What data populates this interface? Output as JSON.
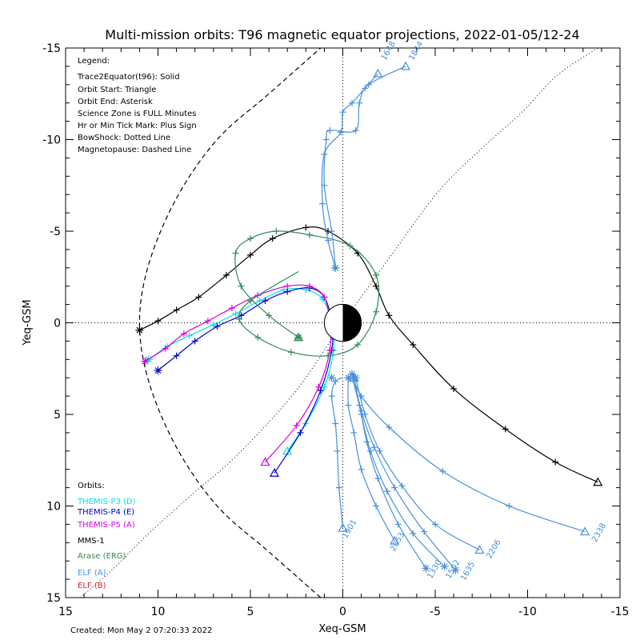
{
  "chart_data": {
    "type": "line",
    "title": "Multi-mission orbits: T96 magnetic equator projections, 2022-01-05/12-24",
    "xlabel": "Xeq-GSM",
    "ylabel": "Yeq-GSM",
    "xlim": [
      15,
      -15
    ],
    "ylim": [
      -15,
      15
    ],
    "x_ticks": [
      15,
      10,
      5,
      0,
      -5,
      -10,
      -15
    ],
    "y_ticks": [
      -15,
      -10,
      -5,
      0,
      5,
      10,
      15
    ],
    "x_tick_labels": [
      "15",
      "10",
      "5",
      "0",
      "-5",
      "-10",
      "-15"
    ],
    "y_tick_labels": [
      "-15",
      "-10",
      "-5",
      "0",
      "5",
      "10",
      "15"
    ],
    "legend_lines": [
      "Legend:",
      "Trace2Equator(t96): Solid",
      "Orbit Start: Triangle",
      "Orbit End: Asterisk",
      "Science Zone is FULL Minutes",
      "Hr or Min Tick Mark: Plus Sign",
      "BowShock: Dotted Line",
      "Magnetopause: Dashed Line"
    ],
    "orbits_header": "Orbits:",
    "orbit_legend": [
      {
        "label": "THEMIS-P3 (D)",
        "color": "#00e5e5"
      },
      {
        "label": "THEMIS-P4 (E)",
        "color": "#0000cc"
      },
      {
        "label": "THEMIS-P5 (A)",
        "color": "#dd00dd"
      },
      {
        "label": "MMS-1",
        "color": "#000000"
      },
      {
        "label": "Arase (ERG)",
        "color": "#2e8b57"
      },
      {
        "label": "ELF (A)",
        "color": "#4a90d9"
      },
      {
        "label": "ELF (B)",
        "color": "#dd2222"
      }
    ],
    "created_text": "Created: Mon May  2 07:20:33 2022",
    "bow_shock": {
      "x": [
        14.2,
        12.5,
        10.5,
        8.3,
        5.7,
        2.6,
        0.0,
        -2.7,
        -5.2,
        -7.5,
        -9.7,
        -11.6,
        -13.8
      ],
      "y": [
        15,
        13.5,
        11.5,
        9.5,
        7.2,
        3.8,
        0.0,
        -3.8,
        -7.2,
        -9.5,
        -11.5,
        -13.5,
        -15
      ]
    },
    "magnetopause": {
      "x": [
        1.2,
        4.0,
        6.8,
        9.0,
        10.5,
        11.0,
        10.5,
        9.0,
        6.8,
        4.0,
        1.2
      ],
      "y": [
        15,
        12.5,
        10.0,
        6.8,
        3.2,
        0.0,
        -3.2,
        -6.8,
        -10.0,
        -12.5,
        -15
      ]
    },
    "series": [
      {
        "name": "THEMIS-P3 (D)",
        "color": "#00e5e5",
        "x": [
          10.5,
          9.5,
          8.3,
          7.0,
          5.8,
          4.5,
          3.2,
          2.0,
          1.1,
          0.6,
          0.5,
          1.0,
          2.0,
          3.0
        ],
        "y": [
          2.0,
          1.3,
          0.7,
          0.1,
          -0.5,
          -1.2,
          -1.8,
          -1.8,
          -1.3,
          0.0,
          1.5,
          3.5,
          5.5,
          7.0
        ],
        "start": [
          3.0,
          7.0
        ],
        "end": [
          10.5,
          2.0
        ]
      },
      {
        "name": "THEMIS-P4 (E)",
        "color": "#0000cc",
        "x": [
          10.0,
          9.0,
          8.0,
          6.8,
          5.5,
          4.2,
          3.0,
          1.8,
          1.0,
          0.6,
          0.6,
          1.2,
          2.3,
          3.7
        ],
        "y": [
          2.6,
          1.8,
          1.0,
          0.2,
          -0.4,
          -1.2,
          -1.7,
          -1.9,
          -1.4,
          0.0,
          1.5,
          3.7,
          6.0,
          8.2
        ],
        "start": [
          3.7,
          8.2
        ],
        "end": [
          10.0,
          2.6
        ]
      },
      {
        "name": "THEMIS-P5 (A)",
        "color": "#dd00dd",
        "x": [
          10.7,
          9.6,
          8.6,
          7.3,
          6.0,
          4.6,
          3.0,
          1.8,
          1.0,
          0.7,
          0.7,
          1.3,
          2.5,
          4.2
        ],
        "y": [
          2.1,
          1.4,
          0.6,
          -0.1,
          -0.8,
          -1.5,
          -2.0,
          -2.0,
          -1.4,
          0.0,
          1.5,
          3.5,
          5.6,
          7.6
        ],
        "start": [
          4.2,
          7.6
        ],
        "end": [
          10.7,
          2.1
        ]
      },
      {
        "name": "MMS-1",
        "color": "#000000",
        "x": [
          11.0,
          10.0,
          9.0,
          7.8,
          6.3,
          5.0,
          3.8,
          2.0,
          0.8,
          -0.8,
          -1.8,
          -2.5,
          -3.8,
          -6.0,
          -8.8,
          -11.5,
          -13.8
        ],
        "y": [
          0.4,
          -0.1,
          -0.7,
          -1.4,
          -2.6,
          -3.7,
          -4.6,
          -5.2,
          -5.0,
          -3.8,
          -2.0,
          -0.4,
          1.2,
          3.6,
          5.8,
          7.6,
          8.7
        ],
        "start": [
          -13.8,
          8.7
        ],
        "end": [
          11.0,
          0.4
        ]
      },
      {
        "name": "Arase (ERG)",
        "color": "#2e8b57",
        "x": [
          2.4,
          4.0,
          5.5,
          5.8,
          5.0,
          3.6,
          1.8,
          -0.4,
          -1.8,
          -1.8,
          -0.8,
          0.8,
          2.8,
          4.6,
          5.6,
          5.0,
          2.4
        ],
        "y": [
          0.8,
          -0.4,
          -2.0,
          -3.8,
          -4.6,
          -5.0,
          -4.8,
          -4.2,
          -2.6,
          -0.6,
          1.2,
          1.8,
          1.6,
          0.8,
          -0.2,
          -1.2,
          -2.8
        ],
        "start": [
          2.4,
          0.8
        ],
        "end": [
          2.4,
          0.8
        ]
      },
      {
        "name": "ELF (A) 1844",
        "color": "#4a90d9",
        "x": [
          0.4,
          0.6,
          1.0,
          0.9,
          0.7,
          -0.7,
          -0.9,
          -1.4,
          -3.4
        ],
        "y": [
          -3.0,
          -5.0,
          -7.5,
          -10.0,
          -10.5,
          -10.5,
          -12.0,
          -13.0,
          -14.0
        ],
        "start": [
          -3.4,
          -14.0
        ],
        "end": [
          0.4,
          -3.0
        ]
      },
      {
        "name": "ELF (A) 1648",
        "color": "#4a90d9",
        "x": [
          0.4,
          0.8,
          1.1,
          1.0,
          0.1,
          0.0,
          -0.5,
          -1.2,
          -1.9
        ],
        "y": [
          -3.0,
          -4.5,
          -6.5,
          -9.2,
          -10.4,
          -11.5,
          -12.0,
          -12.8,
          -13.6
        ],
        "start": [
          -1.9,
          -13.6
        ],
        "end": [
          0.4,
          -3.0
        ]
      },
      {
        "name": "ELF (A) 1901",
        "color": "#4a90d9",
        "x": [
          0.0,
          0.2,
          0.3,
          0.4,
          0.6,
          0.4,
          0.0
        ],
        "y": [
          11.2,
          9.0,
          7.0,
          5.5,
          4.0,
          3.2,
          3.0
        ],
        "start": [
          0.0,
          11.2
        ],
        "end": [
          0.6,
          3.0
        ]
      },
      {
        "name": "ELF (A) 2338",
        "color": "#4a90d9",
        "x": [
          -13.1,
          -9.0,
          -5.4,
          -2.5,
          -1.0,
          -0.5
        ],
        "y": [
          11.4,
          10.0,
          8.1,
          5.7,
          4.0,
          2.8
        ],
        "start": [
          -13.1,
          11.4
        ],
        "end": [
          -0.5,
          2.8
        ]
      },
      {
        "name": "ELF (A) 2206",
        "color": "#4a90d9",
        "x": [
          -7.4,
          -5.0,
          -3.2,
          -2.0,
          -1.2,
          -0.7
        ],
        "y": [
          12.4,
          11.0,
          8.9,
          7.0,
          5.0,
          3.0
        ],
        "start": [
          -7.4,
          12.4
        ],
        "end": [
          -0.7,
          3.0
        ]
      },
      {
        "name": "ELF (A) 2053",
        "color": "#4a90d9",
        "x": [
          -2.8,
          -1.8,
          -1.0,
          -0.6,
          -0.3,
          -0.3
        ],
        "y": [
          11.9,
          10.0,
          8.0,
          6.0,
          4.5,
          3.0
        ],
        "start": [
          -2.8,
          11.9
        ],
        "end": [
          -0.3,
          3.0
        ]
      },
      {
        "name": "ELF (A) 1330",
        "color": "#4a90d9",
        "x": [
          -4.5,
          -3.0,
          -1.9,
          -1.3,
          -0.9,
          -0.5
        ],
        "y": [
          13.4,
          11.0,
          8.5,
          6.5,
          4.5,
          3.0
        ],
        "start": [
          -0.5,
          3.0
        ],
        "end": [
          -4.5,
          13.4
        ]
      },
      {
        "name": "ELF (A) 1502",
        "color": "#4a90d9",
        "x": [
          -5.5,
          -3.8,
          -2.4,
          -1.5,
          -1.0,
          -0.6
        ],
        "y": [
          13.3,
          11.5,
          9.2,
          7.0,
          5.0,
          3.0
        ],
        "start": [
          -0.6,
          3.0
        ],
        "end": [
          -5.5,
          13.3
        ]
      },
      {
        "name": "ELF (A) 1635",
        "color": "#4a90d9",
        "x": [
          -6.1,
          -4.4,
          -2.8,
          -1.7,
          -1.0,
          -0.6
        ],
        "y": [
          13.5,
          11.4,
          9.0,
          6.8,
          4.8,
          3.0
        ],
        "start": [
          -0.6,
          3.0
        ],
        "end": [
          -6.1,
          13.5
        ]
      }
    ],
    "track_labels": [
      {
        "text": "1844",
        "x": -3.8,
        "y": -14.3,
        "color": "#4a90d9"
      },
      {
        "text": "1648",
        "x": -2.3,
        "y": -14.3,
        "color": "#4a90d9"
      },
      {
        "text": "1901",
        "x": -0.2,
        "y": 11.8,
        "color": "#4a90d9"
      },
      {
        "text": "2053",
        "x": -2.8,
        "y": 12.5,
        "color": "#4a90d9"
      },
      {
        "text": "1330",
        "x": -4.8,
        "y": 14.0,
        "color": "#4a90d9"
      },
      {
        "text": "1502",
        "x": -5.8,
        "y": 14.0,
        "color": "#4a90d9"
      },
      {
        "text": "1635",
        "x": -6.6,
        "y": 14.1,
        "color": "#4a90d9"
      },
      {
        "text": "2206",
        "x": -8.0,
        "y": 12.9,
        "color": "#4a90d9"
      },
      {
        "text": "2338",
        "x": -13.7,
        "y": 12.0,
        "color": "#4a90d9"
      }
    ],
    "earth": {
      "center": [
        0,
        0
      ],
      "radius": 1,
      "night_side": "negative-x"
    }
  }
}
